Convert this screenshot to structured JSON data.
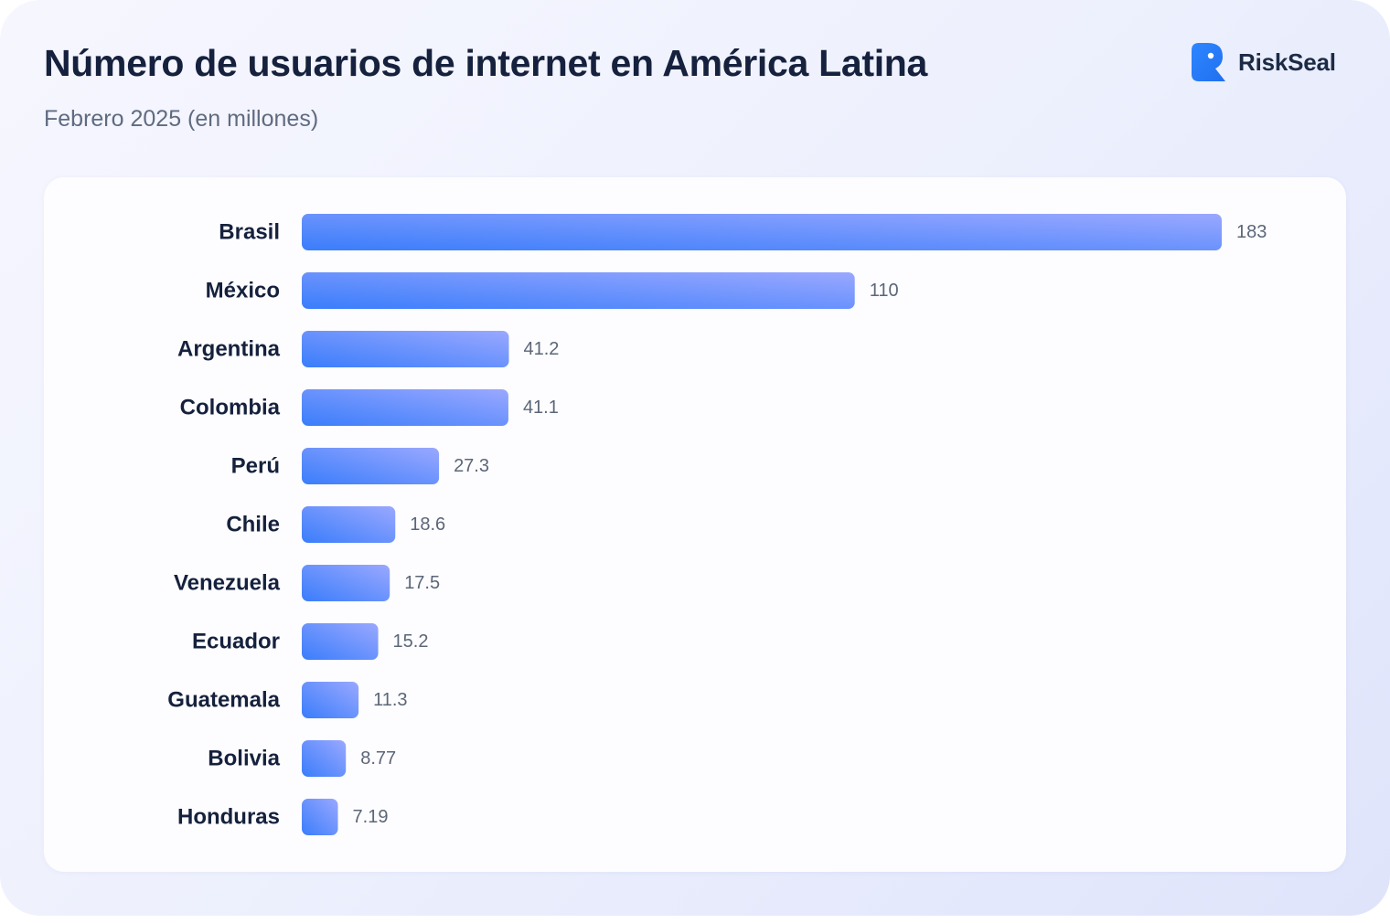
{
  "header": {
    "title": "Número de usuarios de internet en América Latina",
    "subtitle": "Febrero 2025 (en millones)"
  },
  "brand": {
    "name": "RiskSeal",
    "icon": "riskseal-logo-icon",
    "color": "#2e7bf6"
  },
  "colors": {
    "bar_start": "#3a7dfb",
    "bar_end": "#9aa8ff",
    "category_label": "#15213d",
    "value_label": "#5b6678"
  },
  "chart_data": {
    "type": "bar",
    "orientation": "horizontal",
    "title": "Número de usuarios de internet en América Latina",
    "subtitle": "Febrero 2025 (en millones)",
    "xlabel": "",
    "ylabel": "",
    "categories": [
      "Brasil",
      "México",
      "Argentina",
      "Colombia",
      "Perú",
      "Chile",
      "Venezuela",
      "Ecuador",
      "Guatemala",
      "Bolivia",
      "Honduras"
    ],
    "values": [
      183,
      110,
      41.2,
      41.1,
      27.3,
      18.6,
      17.5,
      15.2,
      11.3,
      8.77,
      7.19
    ],
    "value_labels": [
      "183",
      "110",
      "41.2",
      "41.1",
      "27.3",
      "18.6",
      "17.5",
      "15.2",
      "11.3",
      "8.77",
      "7.19"
    ],
    "xlim": [
      0,
      183
    ],
    "grid": false,
    "legend": "none"
  }
}
